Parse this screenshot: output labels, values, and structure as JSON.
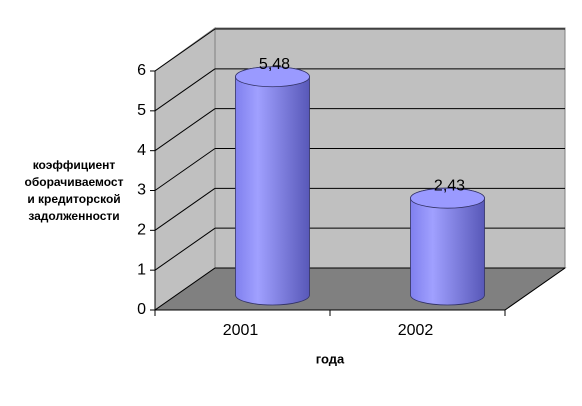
{
  "chart_data": {
    "type": "bar3d",
    "ylabel": [
      "коэффициент",
      "оборачиваемост",
      "и кредиторской",
      "задолженности"
    ],
    "xlabel": "года",
    "categories": [
      "2001",
      "2002"
    ],
    "values": [
      5.48,
      2.43
    ],
    "value_labels": [
      "5,48",
      "2,43"
    ],
    "color": "#9999ff",
    "ylim": [
      0,
      6
    ],
    "yticks": [
      0,
      1,
      2,
      3,
      4,
      5,
      6
    ],
    "grid": true
  }
}
